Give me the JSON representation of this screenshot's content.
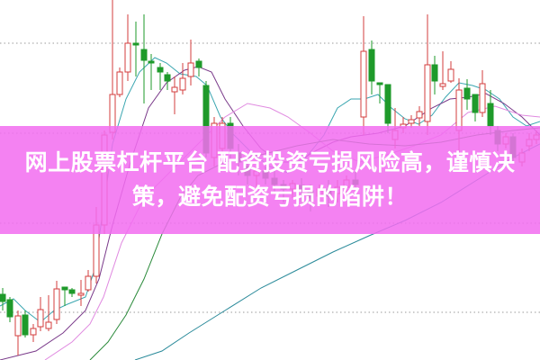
{
  "chart_data": {
    "type": "candlestick",
    "title": "",
    "xlabel": "",
    "ylabel": "",
    "grid": "dotted horizontal",
    "legend": "none",
    "up_color": "#d33c3c",
    "down_color": "#1e9a2a",
    "ma_colors": [
      "#3aa6b0",
      "#7a3a8a",
      "#e08ae0",
      "#2a8a3a",
      "#2a8a9a"
    ]
  },
  "banner": {
    "text": "网上股票杠杆平台 配资投资亏损风险高，谨慎决策，避免配资亏损的陷阱！",
    "color": "#f26ef0"
  }
}
